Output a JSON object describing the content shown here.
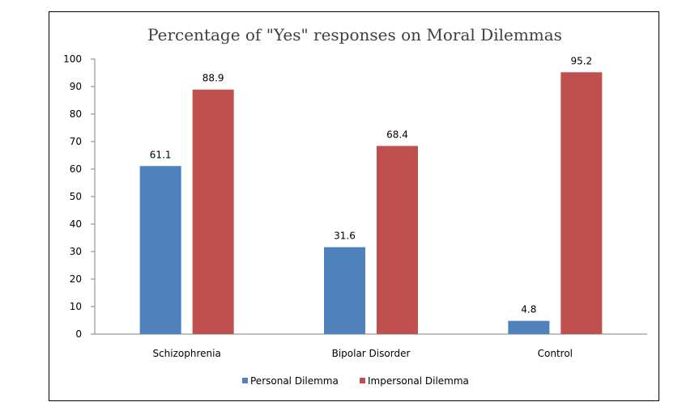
{
  "chart_data": {
    "type": "bar",
    "title": "Percentage of \"Yes\" responses on Moral Dilemmas",
    "xlabel": "",
    "ylabel": "",
    "categories": [
      "Schizophrenia",
      "Bipolar Disorder",
      "Control"
    ],
    "series": [
      {
        "name": "Personal Dilemma",
        "values": [
          61.1,
          31.6,
          4.8
        ],
        "color": "#4F81BD"
      },
      {
        "name": "Impersonal Dilemma",
        "values": [
          88.9,
          68.4,
          95.2
        ],
        "color": "#C0504D"
      }
    ],
    "ylim": [
      0,
      100
    ],
    "yticks": [
      0,
      10,
      20,
      30,
      40,
      50,
      60,
      70,
      80,
      90,
      100
    ],
    "grid": false,
    "legend_position": "bottom",
    "data_labels": true
  }
}
